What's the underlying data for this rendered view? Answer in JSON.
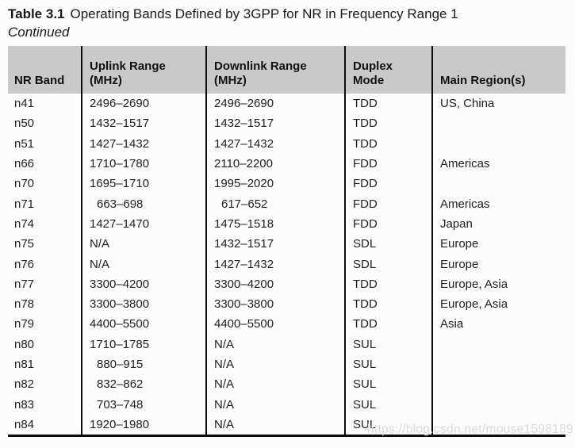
{
  "title": {
    "label": "Table 3.1",
    "text": "Operating Bands Defined by 3GPP for NR in Frequency Range 1",
    "continued": "Continued"
  },
  "watermark": "https://blog.csdn.net/mouse1598189",
  "colors": {
    "header_bg": "#c9c9c9",
    "rule": "#0c0c0c",
    "watermark_text": "#dbdbdb"
  },
  "table": {
    "columns": [
      {
        "key": "band",
        "label": "NR Band"
      },
      {
        "key": "uplink",
        "label": "Uplink Range\n(MHz)"
      },
      {
        "key": "downlink",
        "label": "Downlink Range\n(MHz)"
      },
      {
        "key": "duplex",
        "label": "Duplex\nMode"
      },
      {
        "key": "region",
        "label": "Main Region(s)"
      }
    ],
    "rows": [
      {
        "band": "n41",
        "uplink": "2496–2690",
        "downlink": "2496–2690",
        "duplex": "TDD",
        "region": "US, China"
      },
      {
        "band": "n50",
        "uplink": "1432–1517",
        "downlink": "1432–1517",
        "duplex": "TDD",
        "region": ""
      },
      {
        "band": "n51",
        "uplink": "1427–1432",
        "downlink": "1427–1432",
        "duplex": "TDD",
        "region": ""
      },
      {
        "band": "n66",
        "uplink": "1710–1780",
        "downlink": "2110–2200",
        "duplex": "FDD",
        "region": "Americas"
      },
      {
        "band": "n70",
        "uplink": "1695–1710",
        "downlink": "1995–2020",
        "duplex": "FDD",
        "region": ""
      },
      {
        "band": "n71",
        "uplink": "663–698",
        "downlink": "617–652",
        "duplex": "FDD",
        "region": "Americas"
      },
      {
        "band": "n74",
        "uplink": "1427–1470",
        "downlink": "1475–1518",
        "duplex": "FDD",
        "region": "Japan"
      },
      {
        "band": "n75",
        "uplink": "N/A",
        "downlink": "1432–1517",
        "duplex": "SDL",
        "region": "Europe"
      },
      {
        "band": "n76",
        "uplink": "N/A",
        "downlink": "1427–1432",
        "duplex": "SDL",
        "region": "Europe"
      },
      {
        "band": "n77",
        "uplink": "3300–4200",
        "downlink": "3300–4200",
        "duplex": "TDD",
        "region": "Europe, Asia"
      },
      {
        "band": "n78",
        "uplink": "3300–3800",
        "downlink": "3300–3800",
        "duplex": "TDD",
        "region": "Europe, Asia"
      },
      {
        "band": "n79",
        "uplink": "4400–5500",
        "downlink": "4400–5500",
        "duplex": "TDD",
        "region": "Asia"
      },
      {
        "band": "n80",
        "uplink": "1710–1785",
        "downlink": "N/A",
        "duplex": "SUL",
        "region": ""
      },
      {
        "band": "n81",
        "uplink": "880–915",
        "downlink": "N/A",
        "duplex": "SUL",
        "region": ""
      },
      {
        "band": "n82",
        "uplink": "832–862",
        "downlink": "N/A",
        "duplex": "SUL",
        "region": ""
      },
      {
        "band": "n83",
        "uplink": "703–748",
        "downlink": "N/A",
        "duplex": "SUL",
        "region": ""
      },
      {
        "band": "n84",
        "uplink": "1920–1980",
        "downlink": "N/A",
        "duplex": "SUL",
        "region": ""
      }
    ]
  }
}
